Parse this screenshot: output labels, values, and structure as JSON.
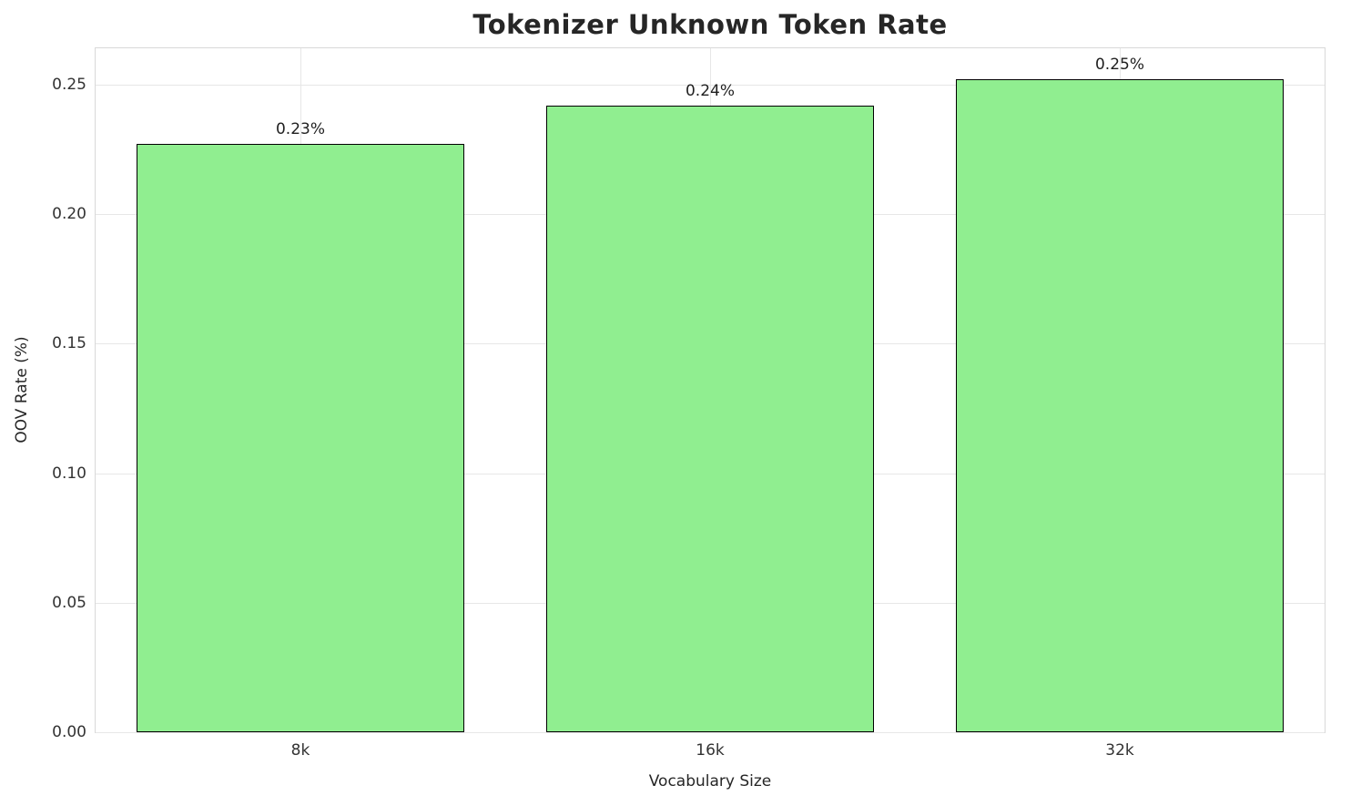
{
  "chart_data": {
    "type": "bar",
    "title": "Tokenizer Unknown Token Rate",
    "xlabel": "Vocabulary Size",
    "ylabel": "OOV Rate (%)",
    "categories": [
      "8k",
      "16k",
      "32k"
    ],
    "values": [
      0.227,
      0.242,
      0.252
    ],
    "bar_labels": [
      "0.23%",
      "0.24%",
      "0.25%"
    ],
    "yticks": [
      0.0,
      0.05,
      0.1,
      0.15,
      0.2,
      0.25
    ],
    "ytick_labels": [
      "0.00",
      "0.05",
      "0.10",
      "0.15",
      "0.20",
      "0.25"
    ],
    "ylim": [
      0,
      0.264
    ],
    "bar_color": "#90ee90",
    "bar_edge_color": "#000000",
    "grid": true,
    "grid_color": "#e7e7e7",
    "legend": "none",
    "background": "#ffffff"
  }
}
